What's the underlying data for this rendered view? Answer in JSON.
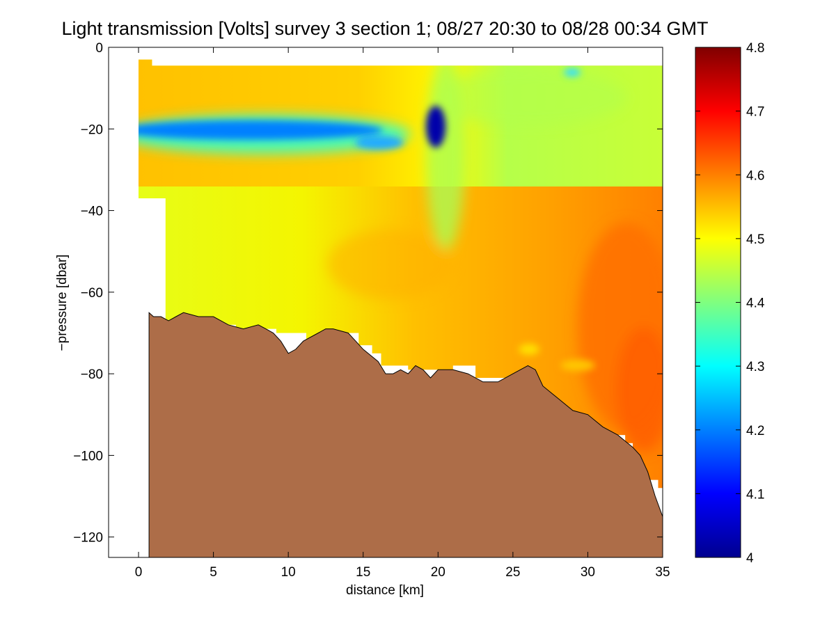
{
  "chart_data": {
    "type": "heatmap",
    "title": "Light transmission [Volts] survey 3 section 1; 08/27 20:30 to 08/28 00:34 GMT",
    "xlabel": "distance [km]",
    "ylabel": "−pressure [dbar]",
    "xlim": [
      -2,
      35
    ],
    "ylim": [
      -125,
      0
    ],
    "x_ticks": [
      0,
      5,
      10,
      15,
      20,
      25,
      30,
      35
    ],
    "x_tick_labels": [
      "0",
      "5",
      "10",
      "15",
      "20",
      "25",
      "30",
      "35"
    ],
    "y_ticks": [
      0,
      -20,
      -40,
      -60,
      -80,
      -100,
      -120
    ],
    "y_tick_labels": [
      "0",
      "−20",
      "−40",
      "−60",
      "−80",
      "−100",
      "−120"
    ],
    "colorbar": {
      "colormap": "jet",
      "range": [
        4.0,
        4.8
      ],
      "ticks": [
        4,
        4.1,
        4.2,
        4.3,
        4.4,
        4.5,
        4.6,
        4.7,
        4.8
      ],
      "tick_labels": [
        "4",
        "4.1",
        "4.2",
        "4.3",
        "4.4",
        "4.5",
        "4.6",
        "4.7",
        "4.8"
      ]
    },
    "field_summary": {
      "surface_depth": -4.5,
      "blue_layer": {
        "x_range": [
          0,
          17
        ],
        "depth_center": -20,
        "value": 4.22
      },
      "dark_blue_patch": {
        "x_center": 19.8,
        "depth_range": [
          -14,
          -26
        ],
        "value": 4.05
      },
      "orange_core": {
        "x_range": [
          31,
          35
        ],
        "depth_range": [
          -60,
          -95
        ],
        "value": 4.62
      }
    },
    "bathymetry": {
      "fill_color": "#AD6D48",
      "x": [
        0.7,
        1.0,
        1.5,
        2.0,
        2.5,
        3.0,
        4.0,
        5.0,
        6.0,
        7.0,
        8.0,
        8.5,
        9.0,
        9.5,
        10.0,
        10.5,
        11.0,
        12.0,
        12.5,
        13.0,
        14.0,
        14.5,
        15.0,
        16.0,
        16.5,
        17.0,
        17.5,
        18.0,
        18.5,
        19.0,
        19.5,
        20.0,
        21.0,
        22.0,
        23.0,
        24.0,
        25.0,
        26.0,
        26.5,
        27.0,
        28.0,
        29.0,
        30.0,
        31.0,
        32.0,
        33.0,
        33.5,
        34.0,
        34.5,
        35.0
      ],
      "depth": [
        -65,
        -66,
        -66,
        -67,
        -66,
        -65,
        -66,
        -66,
        -68,
        -69,
        -68,
        -69,
        -70,
        -72,
        -75,
        -74,
        -72,
        -70,
        -69,
        -69,
        -70,
        -72,
        -74,
        -77,
        -80,
        -80,
        -79,
        -80,
        -78,
        -79,
        -81,
        -79,
        -79,
        -80,
        -82,
        -82,
        -80,
        -78,
        -79,
        -83,
        -86,
        -89,
        -90,
        -93,
        -95,
        -98,
        -100,
        -104,
        -110,
        -115
      ]
    },
    "coverage_outline": {
      "x": [
        0.0,
        0.0,
        0.9,
        0.9,
        35.0,
        35.0,
        34.7,
        34.7,
        33.0,
        33.0,
        32.5,
        32.5,
        30.3,
        30.3,
        29.0,
        29.0,
        28.0,
        28.0,
        27.2,
        27.2,
        26.3,
        26.3,
        24.5,
        24.5,
        22.5,
        22.5,
        21.0,
        21.0,
        18.0,
        18.0,
        16.2,
        16.2,
        15.6,
        15.6,
        14.7,
        14.7,
        12.2,
        12.2,
        11.2,
        11.2,
        9.2,
        9.2,
        6.5,
        6.5,
        5.5,
        5.5,
        1.8,
        1.8,
        0.0
      ],
      "depth": [
        -37,
        -3,
        -3,
        -4.5,
        -4.5,
        -108,
        -108,
        -106,
        -106,
        -97,
        -97,
        -95,
        -95,
        -92,
        -92,
        -89,
        -89,
        -87,
        -87,
        -84,
        -84,
        -82,
        -82,
        -81,
        -81,
        -78,
        -78,
        -79,
        -79,
        -78,
        -78,
        -75,
        -75,
        -73,
        -73,
        -70,
        -70,
        -72,
        -72,
        -70,
        -70,
        -69,
        -69,
        -68,
        -68,
        -67,
        -67,
        -37,
        -37
      ]
    }
  }
}
